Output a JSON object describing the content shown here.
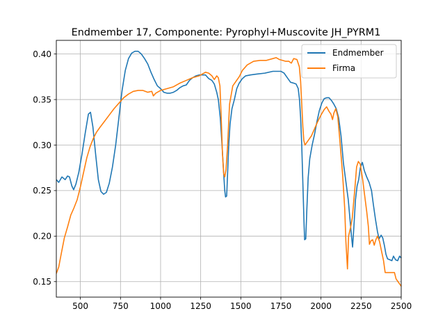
{
  "chart_data": {
    "type": "line",
    "title": "Endmember 17, Componente: Pyrophyl+Muscovite JH_PYRM1",
    "xlabel": "",
    "ylabel": "",
    "xlim": [
      350,
      2500
    ],
    "ylim": [
      0.133,
      0.415
    ],
    "grid": true,
    "legend_position": "top-right",
    "x_ticks": [
      500,
      750,
      1000,
      1250,
      1500,
      1750,
      2000,
      2250,
      2500
    ],
    "y_ticks": [
      0.15,
      0.2,
      0.25,
      0.3,
      0.35,
      0.4
    ],
    "x_tick_labels": [
      "500",
      "750",
      "1000",
      "1250",
      "1500",
      "1750",
      "2000",
      "2250",
      "2500"
    ],
    "y_tick_labels": [
      "0.15",
      "0.20",
      "0.25",
      "0.30",
      "0.35",
      "0.40"
    ],
    "series": [
      {
        "name": "Endmember",
        "color": "#1f77b4",
        "points": [
          [
            350,
            0.262
          ],
          [
            365,
            0.259
          ],
          [
            385,
            0.265
          ],
          [
            405,
            0.262
          ],
          [
            420,
            0.266
          ],
          [
            432,
            0.265
          ],
          [
            447,
            0.255
          ],
          [
            458,
            0.251
          ],
          [
            472,
            0.257
          ],
          [
            490,
            0.27
          ],
          [
            510,
            0.29
          ],
          [
            530,
            0.313
          ],
          [
            550,
            0.334
          ],
          [
            563,
            0.336
          ],
          [
            578,
            0.32
          ],
          [
            595,
            0.29
          ],
          [
            612,
            0.262
          ],
          [
            628,
            0.249
          ],
          [
            645,
            0.246
          ],
          [
            662,
            0.248
          ],
          [
            680,
            0.258
          ],
          [
            700,
            0.276
          ],
          [
            720,
            0.3
          ],
          [
            740,
            0.33
          ],
          [
            760,
            0.36
          ],
          [
            780,
            0.382
          ],
          [
            800,
            0.395
          ],
          [
            820,
            0.401
          ],
          [
            840,
            0.403
          ],
          [
            860,
            0.403
          ],
          [
            880,
            0.4
          ],
          [
            900,
            0.395
          ],
          [
            920,
            0.389
          ],
          [
            940,
            0.38
          ],
          [
            960,
            0.372
          ],
          [
            980,
            0.365
          ],
          [
            1000,
            0.362
          ],
          [
            1020,
            0.358
          ],
          [
            1040,
            0.357
          ],
          [
            1060,
            0.357
          ],
          [
            1080,
            0.358
          ],
          [
            1100,
            0.36
          ],
          [
            1120,
            0.363
          ],
          [
            1140,
            0.365
          ],
          [
            1160,
            0.366
          ],
          [
            1180,
            0.371
          ],
          [
            1200,
            0.374
          ],
          [
            1220,
            0.376
          ],
          [
            1240,
            0.377
          ],
          [
            1260,
            0.377
          ],
          [
            1280,
            0.377
          ],
          [
            1300,
            0.373
          ],
          [
            1320,
            0.371
          ],
          [
            1335,
            0.367
          ],
          [
            1350,
            0.358
          ],
          [
            1360,
            0.35
          ],
          [
            1372,
            0.33
          ],
          [
            1383,
            0.3
          ],
          [
            1393,
            0.27
          ],
          [
            1400,
            0.25
          ],
          [
            1405,
            0.243
          ],
          [
            1412,
            0.244
          ],
          [
            1418,
            0.27
          ],
          [
            1425,
            0.3
          ],
          [
            1433,
            0.323
          ],
          [
            1445,
            0.34
          ],
          [
            1460,
            0.35
          ],
          [
            1475,
            0.362
          ],
          [
            1490,
            0.368
          ],
          [
            1510,
            0.373
          ],
          [
            1530,
            0.376
          ],
          [
            1560,
            0.377
          ],
          [
            1600,
            0.378
          ],
          [
            1650,
            0.379
          ],
          [
            1700,
            0.381
          ],
          [
            1750,
            0.381
          ],
          [
            1770,
            0.379
          ],
          [
            1790,
            0.374
          ],
          [
            1810,
            0.369
          ],
          [
            1830,
            0.368
          ],
          [
            1845,
            0.367
          ],
          [
            1858,
            0.362
          ],
          [
            1866,
            0.35
          ],
          [
            1873,
            0.33
          ],
          [
            1880,
            0.3
          ],
          [
            1885,
            0.27
          ],
          [
            1890,
            0.24
          ],
          [
            1895,
            0.21
          ],
          [
            1898,
            0.196
          ],
          [
            1905,
            0.197
          ],
          [
            1912,
            0.23
          ],
          [
            1920,
            0.264
          ],
          [
            1930,
            0.285
          ],
          [
            1945,
            0.3
          ],
          [
            1960,
            0.312
          ],
          [
            1975,
            0.326
          ],
          [
            1990,
            0.338
          ],
          [
            2005,
            0.346
          ],
          [
            2020,
            0.351
          ],
          [
            2035,
            0.352
          ],
          [
            2050,
            0.352
          ],
          [
            2065,
            0.349
          ],
          [
            2080,
            0.345
          ],
          [
            2095,
            0.34
          ],
          [
            2110,
            0.33
          ],
          [
            2125,
            0.31
          ],
          [
            2140,
            0.28
          ],
          [
            2155,
            0.26
          ],
          [
            2170,
            0.24
          ],
          [
            2180,
            0.22
          ],
          [
            2190,
            0.2
          ],
          [
            2197,
            0.188
          ],
          [
            2205,
            0.21
          ],
          [
            2215,
            0.24
          ],
          [
            2225,
            0.255
          ],
          [
            2235,
            0.262
          ],
          [
            2245,
            0.275
          ],
          [
            2258,
            0.281
          ],
          [
            2270,
            0.272
          ],
          [
            2285,
            0.265
          ],
          [
            2300,
            0.259
          ],
          [
            2315,
            0.25
          ],
          [
            2327,
            0.234
          ],
          [
            2340,
            0.218
          ],
          [
            2352,
            0.205
          ],
          [
            2362,
            0.197
          ],
          [
            2375,
            0.201
          ],
          [
            2385,
            0.198
          ],
          [
            2395,
            0.19
          ],
          [
            2405,
            0.18
          ],
          [
            2415,
            0.175
          ],
          [
            2430,
            0.174
          ],
          [
            2442,
            0.173
          ],
          [
            2452,
            0.178
          ],
          [
            2465,
            0.174
          ],
          [
            2478,
            0.173
          ],
          [
            2490,
            0.178
          ],
          [
            2500,
            0.176
          ]
        ]
      },
      {
        "name": "Firma",
        "color": "#ff7f0e",
        "points": [
          [
            350,
            0.159
          ],
          [
            365,
            0.166
          ],
          [
            380,
            0.18
          ],
          [
            400,
            0.198
          ],
          [
            420,
            0.21
          ],
          [
            440,
            0.223
          ],
          [
            460,
            0.231
          ],
          [
            480,
            0.24
          ],
          [
            500,
            0.254
          ],
          [
            520,
            0.27
          ],
          [
            540,
            0.286
          ],
          [
            560,
            0.298
          ],
          [
            580,
            0.307
          ],
          [
            600,
            0.314
          ],
          [
            620,
            0.319
          ],
          [
            650,
            0.326
          ],
          [
            680,
            0.333
          ],
          [
            710,
            0.34
          ],
          [
            740,
            0.346
          ],
          [
            770,
            0.352
          ],
          [
            800,
            0.356
          ],
          [
            830,
            0.359
          ],
          [
            860,
            0.36
          ],
          [
            890,
            0.36
          ],
          [
            920,
            0.358
          ],
          [
            945,
            0.359
          ],
          [
            955,
            0.354
          ],
          [
            970,
            0.357
          ],
          [
            1000,
            0.36
          ],
          [
            1040,
            0.362
          ],
          [
            1080,
            0.364
          ],
          [
            1120,
            0.368
          ],
          [
            1160,
            0.371
          ],
          [
            1200,
            0.374
          ],
          [
            1240,
            0.376
          ],
          [
            1260,
            0.378
          ],
          [
            1280,
            0.38
          ],
          [
            1300,
            0.379
          ],
          [
            1320,
            0.376
          ],
          [
            1335,
            0.372
          ],
          [
            1350,
            0.376
          ],
          [
            1360,
            0.374
          ],
          [
            1370,
            0.365
          ],
          [
            1378,
            0.33
          ],
          [
            1386,
            0.29
          ],
          [
            1393,
            0.269
          ],
          [
            1400,
            0.265
          ],
          [
            1408,
            0.273
          ],
          [
            1418,
            0.3
          ],
          [
            1430,
            0.345
          ],
          [
            1450,
            0.365
          ],
          [
            1470,
            0.37
          ],
          [
            1490,
            0.375
          ],
          [
            1510,
            0.382
          ],
          [
            1540,
            0.388
          ],
          [
            1580,
            0.392
          ],
          [
            1620,
            0.393
          ],
          [
            1660,
            0.393
          ],
          [
            1700,
            0.395
          ],
          [
            1720,
            0.396
          ],
          [
            1740,
            0.394
          ],
          [
            1760,
            0.393
          ],
          [
            1780,
            0.392
          ],
          [
            1800,
            0.392
          ],
          [
            1815,
            0.39
          ],
          [
            1830,
            0.395
          ],
          [
            1850,
            0.394
          ],
          [
            1865,
            0.386
          ],
          [
            1873,
            0.37
          ],
          [
            1880,
            0.345
          ],
          [
            1887,
            0.32
          ],
          [
            1893,
            0.305
          ],
          [
            1900,
            0.3
          ],
          [
            1920,
            0.305
          ],
          [
            1940,
            0.31
          ],
          [
            1960,
            0.318
          ],
          [
            1980,
            0.326
          ],
          [
            2000,
            0.333
          ],
          [
            2020,
            0.339
          ],
          [
            2035,
            0.342
          ],
          [
            2050,
            0.337
          ],
          [
            2062,
            0.334
          ],
          [
            2072,
            0.328
          ],
          [
            2080,
            0.335
          ],
          [
            2092,
            0.34
          ],
          [
            2105,
            0.331
          ],
          [
            2120,
            0.3
          ],
          [
            2135,
            0.267
          ],
          [
            2148,
            0.23
          ],
          [
            2155,
            0.195
          ],
          [
            2165,
            0.164
          ],
          [
            2172,
            0.2
          ],
          [
            2185,
            0.21
          ],
          [
            2195,
            0.22
          ],
          [
            2210,
            0.25
          ],
          [
            2222,
            0.276
          ],
          [
            2233,
            0.282
          ],
          [
            2245,
            0.279
          ],
          [
            2260,
            0.262
          ],
          [
            2272,
            0.245
          ],
          [
            2285,
            0.227
          ],
          [
            2295,
            0.211
          ],
          [
            2302,
            0.191
          ],
          [
            2312,
            0.195
          ],
          [
            2322,
            0.196
          ],
          [
            2332,
            0.19
          ],
          [
            2342,
            0.196
          ],
          [
            2352,
            0.2
          ],
          [
            2365,
            0.194
          ],
          [
            2378,
            0.183
          ],
          [
            2390,
            0.173
          ],
          [
            2400,
            0.16
          ],
          [
            2420,
            0.16
          ],
          [
            2440,
            0.16
          ],
          [
            2458,
            0.16
          ],
          [
            2468,
            0.153
          ],
          [
            2480,
            0.15
          ],
          [
            2492,
            0.147
          ],
          [
            2500,
            0.145
          ]
        ]
      }
    ]
  }
}
